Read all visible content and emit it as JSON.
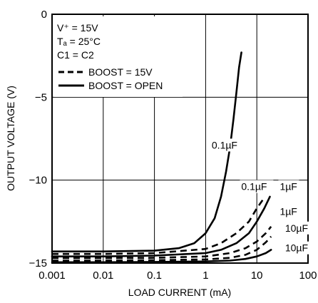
{
  "chart_data": {
    "type": "line",
    "title": "",
    "xlabel": "LOAD CURRENT (mA)",
    "ylabel": "OUTPUT VOLTAGE (V)",
    "x_scale": "log",
    "xlim": [
      0.001,
      100
    ],
    "ylim": [
      -15,
      0
    ],
    "grid": true,
    "x_ticks": [
      "0.001",
      "0.01",
      "0.1",
      "1",
      "10",
      "100"
    ],
    "y_ticks": [
      "0",
      "−5",
      "−10",
      "−15"
    ],
    "conditions": {
      "line1": "V⁺ = 15V",
      "line2": "Tₐ = 25°C",
      "line3": "C1 = C2"
    },
    "legend_entries": [
      {
        "label": "BOOST = 15V",
        "style": "dashed"
      },
      {
        "label": "BOOST = OPEN",
        "style": "solid"
      }
    ],
    "series": [
      {
        "name": "BOOST = OPEN, 0.1µF",
        "style": "solid",
        "x": [
          0.001,
          0.01,
          0.1,
          0.3,
          0.6,
          1,
          1.5,
          2,
          2.5,
          3,
          3.5,
          4,
          4.5,
          5
        ],
        "y": [
          -14.3,
          -14.3,
          -14.25,
          -14.1,
          -13.8,
          -13.2,
          -12.3,
          -11,
          -9.5,
          -8,
          -6.3,
          -4.7,
          -3.2,
          -2.3
        ]
      },
      {
        "name": "BOOST = 15V, 0.1µF",
        "style": "dashed",
        "x": [
          0.001,
          0.01,
          0.1,
          1,
          2,
          4,
          7,
          10,
          13
        ],
        "y": [
          -14.45,
          -14.45,
          -14.4,
          -14.15,
          -13.8,
          -13.2,
          -12.5,
          -11.7,
          -11.2
        ]
      },
      {
        "name": "BOOST = OPEN, 1µF",
        "style": "solid",
        "x": [
          0.001,
          0.01,
          0.1,
          1,
          2,
          4,
          7,
          10,
          14,
          18
        ],
        "y": [
          -14.6,
          -14.6,
          -14.55,
          -14.4,
          -14.2,
          -13.8,
          -13.2,
          -12.5,
          -11.7,
          -11
        ]
      },
      {
        "name": "BOOST = 15V, 1µF",
        "style": "dashed",
        "x": [
          0.001,
          0.01,
          0.1,
          1,
          3,
          6,
          10,
          15,
          19
        ],
        "y": [
          -14.7,
          -14.7,
          -14.68,
          -14.6,
          -14.4,
          -14.1,
          -13.7,
          -13.2,
          -12.8
        ]
      },
      {
        "name": "BOOST = 15V, 10µF",
        "style": "dashed",
        "x": [
          0.001,
          0.01,
          0.1,
          1,
          3,
          6,
          10,
          15,
          19
        ],
        "y": [
          -14.85,
          -14.85,
          -14.83,
          -14.78,
          -14.68,
          -14.5,
          -14.2,
          -13.75,
          -13.4
        ]
      },
      {
        "name": "BOOST = OPEN, 10µF",
        "style": "solid",
        "x": [
          0.001,
          0.01,
          0.1,
          1,
          3,
          6,
          10,
          15,
          19
        ],
        "y": [
          -14.95,
          -14.95,
          -14.93,
          -14.9,
          -14.85,
          -14.75,
          -14.6,
          -14.4,
          -14.2
        ]
      }
    ],
    "curve_labels": [
      {
        "text": "0.1µF",
        "x": 1.4,
        "y": -8.1
      },
      {
        "text": "0.1µF",
        "x": 5.3,
        "y": -10.6
      },
      {
        "text": "1µF",
        "x": 30,
        "y": -10.6
      },
      {
        "text": "1µF",
        "x": 30,
        "y": -12.1
      },
      {
        "text": "10µF",
        "x": 38,
        "y": -13.1
      },
      {
        "text": "10µF",
        "x": 38,
        "y": -14.3
      }
    ]
  }
}
